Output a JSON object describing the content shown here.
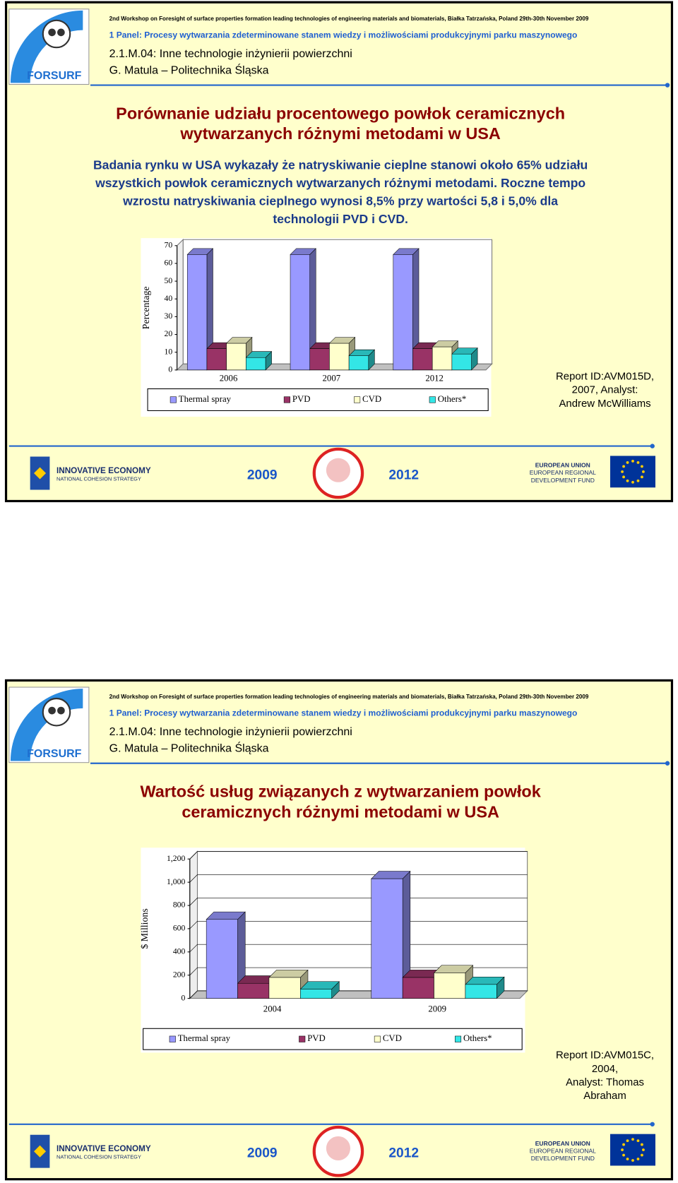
{
  "slides": [
    {
      "workshop": "2nd Workshop on Foresight of surface properties formation leading technologies of engineering materials and biomaterials,  Białka Tatrzańska, Poland 29th-30th November 2009",
      "panel": "1 Panel: Procesy wytwarzania zdeterminowane stanem wiedzy i możliwościami produkcyjnymi parku maszynowego",
      "topic": "2.1.M.04: Inne technologie inżynierii powierzchni",
      "author": "G. Matula – Politechnika Śląska",
      "logo": "FORSURF",
      "title": [
        "Porównanie udziału procentowego powłok ceramicznych",
        "wytwarzanych różnymi metodami w USA"
      ],
      "body": [
        "Badania rynku w USA wykazały że natryskiwanie cieplne stanowi około 65% udziału",
        "wszystkich powłok ceramicznych wytwarzanych różnymi metodami. Roczne tempo",
        "wzrostu natryskiwania cieplnego wynosi 8,5% przy wartości 5,8 i 5,0% dla",
        "technologii PVD i CVD."
      ],
      "source": [
        "Report ID:AVM015D,",
        "2007, Analyst:",
        "Andrew McWilliams"
      ],
      "footer": {
        "left_title": "INNOVATIVE ECONOMY",
        "left_sub": "NATIONAL COHESION STRATEGY",
        "year_from": "2009",
        "year_to": "2012",
        "eu": [
          "EUROPEAN UNION",
          "EUROPEAN REGIONAL",
          "DEVELOPMENT FUND"
        ]
      }
    },
    {
      "workshop": "2nd Workshop on Foresight of surface properties formation leading technologies of engineering materials and biomaterials,  Białka Tatrzańska, Poland 29th-30th November 2009",
      "panel": "1 Panel: Procesy wytwarzania zdeterminowane stanem wiedzy i możliwościami produkcyjnymi parku maszynowego",
      "topic": "2.1.M.04: Inne technologie inżynierii powierzchni",
      "author": "G. Matula – Politechnika Śląska",
      "logo": "FORSURF",
      "title": [
        "Wartość usług związanych z wytwarzaniem powłok",
        "ceramicznych różnymi metodami w USA"
      ],
      "body": [],
      "source": [
        "Report ID:AVM015C,",
        "2004,",
        "Analyst: Thomas",
        "Abraham"
      ],
      "footer": {
        "left_title": "INNOVATIVE ECONOMY",
        "left_sub": "NATIONAL COHESION STRATEGY",
        "year_from": "2009",
        "year_to": "2012",
        "eu": [
          "EUROPEAN UNION",
          "EUROPEAN REGIONAL",
          "DEVELOPMENT FUND"
        ]
      }
    }
  ],
  "chart_data": [
    {
      "type": "bar",
      "y_label": "Percentage",
      "categories": [
        "2006",
        "2007",
        "2012"
      ],
      "series": [
        {
          "name": "Thermal spray",
          "color": "#9999ff",
          "values": [
            65,
            65,
            65
          ]
        },
        {
          "name": "PVD",
          "color": "#993366",
          "values": [
            12,
            12,
            12
          ]
        },
        {
          "name": "CVD",
          "color": "#ffffcc",
          "values": [
            15,
            15,
            13
          ]
        },
        {
          "name": "Others*",
          "color": "#33e6e6",
          "values": [
            7,
            8,
            9
          ]
        }
      ],
      "ylim": [
        0,
        70
      ],
      "yticks": [
        0,
        10,
        20,
        30,
        40,
        50,
        60,
        70
      ],
      "grid": false,
      "legend": "bottom"
    },
    {
      "type": "bar",
      "y_label": "$ Millions",
      "categories": [
        "2004",
        "2009"
      ],
      "series": [
        {
          "name": "Thermal spray",
          "color": "#9999ff",
          "values": [
            680,
            1030
          ]
        },
        {
          "name": "PVD",
          "color": "#993366",
          "values": [
            130,
            180
          ]
        },
        {
          "name": "CVD",
          "color": "#ffffcc",
          "values": [
            180,
            220
          ]
        },
        {
          "name": "Others*",
          "color": "#33e6e6",
          "values": [
            80,
            120
          ]
        }
      ],
      "ylim": [
        0,
        1200
      ],
      "yticks": [
        0,
        200,
        400,
        600,
        800,
        {
          "value": 1000,
          "label": "1,000"
        },
        {
          "value": 1200,
          "label": "1,200"
        }
      ],
      "grid": true,
      "legend": "bottom"
    }
  ]
}
